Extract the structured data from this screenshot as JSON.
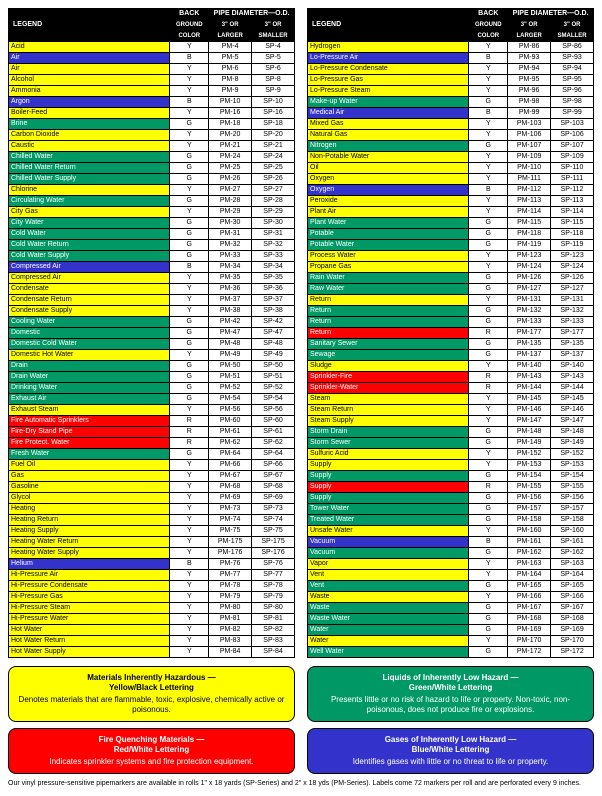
{
  "headers": {
    "legend": "LEGEND",
    "bgcolor_line1": "BACK",
    "bgcolor_line2": "GROUND",
    "bgcolor_line3": "COLOR",
    "pipe_top": "PIPE DIAMETER—O.D.",
    "larger_line1": "3\" OR",
    "larger_line2": "LARGER",
    "smaller_line1": "3\" OR",
    "smaller_line2": "SMALLER"
  },
  "colors": {
    "Y": "#ffff00",
    "G": "#009966",
    "B": "#3333cc",
    "R": "#ff0000",
    "black": "#000000",
    "white": "#ffffff"
  },
  "left_rows": [
    {
      "l": "Acid",
      "bg": "Y",
      "pm": "PM-4",
      "sp": "SP-4"
    },
    {
      "l": "Air",
      "bg": "B",
      "pm": "PM-5",
      "sp": "SP-5"
    },
    {
      "l": "Air",
      "bg": "Y",
      "pm": "PM-6",
      "sp": "SP-6"
    },
    {
      "l": "Alcohol",
      "bg": "Y",
      "pm": "PM-8",
      "sp": "SP-8"
    },
    {
      "l": "Ammonia",
      "bg": "Y",
      "pm": "PM-9",
      "sp": "SP-9"
    },
    {
      "l": "Argon",
      "bg": "B",
      "pm": "PM-10",
      "sp": "SP-10"
    },
    {
      "l": "Boiler-Feed",
      "bg": "Y",
      "pm": "PM-16",
      "sp": "SP-16"
    },
    {
      "l": "Brine",
      "bg": "G",
      "pm": "PM-18",
      "sp": "SP-18"
    },
    {
      "l": "Carbon Dioxide",
      "bg": "Y",
      "pm": "PM-20",
      "sp": "SP-20"
    },
    {
      "l": "Caustic",
      "bg": "Y",
      "pm": "PM-21",
      "sp": "SP-21"
    },
    {
      "l": "Chilled Water",
      "bg": "G",
      "pm": "PM-24",
      "sp": "SP-24"
    },
    {
      "l": "Chilled Water Return",
      "bg": "G",
      "pm": "PM-25",
      "sp": "SP-25"
    },
    {
      "l": "Chilled Water Supply",
      "bg": "G",
      "pm": "PM-26",
      "sp": "SP-26"
    },
    {
      "l": "Chlorine",
      "bg": "Y",
      "pm": "PM-27",
      "sp": "SP-27"
    },
    {
      "l": "Circulating Water",
      "bg": "G",
      "pm": "PM-28",
      "sp": "SP-28"
    },
    {
      "l": "City Gas",
      "bg": "Y",
      "pm": "PM-29",
      "sp": "SP-29"
    },
    {
      "l": "City Water",
      "bg": "G",
      "pm": "PM-30",
      "sp": "SP-30"
    },
    {
      "l": "Cold Water",
      "bg": "G",
      "pm": "PM-31",
      "sp": "SP-31"
    },
    {
      "l": "Cold Water Return",
      "bg": "G",
      "pm": "PM-32",
      "sp": "SP-32"
    },
    {
      "l": "Cold Water Supply",
      "bg": "G",
      "pm": "PM-33",
      "sp": "SP-33"
    },
    {
      "l": "Compressed Air",
      "bg": "B",
      "pm": "PM-34",
      "sp": "SP-34"
    },
    {
      "l": "Compressed Air",
      "bg": "Y",
      "pm": "PM-35",
      "sp": "SP-35"
    },
    {
      "l": "Condensate",
      "bg": "Y",
      "pm": "PM-36",
      "sp": "SP-36"
    },
    {
      "l": "Condensate Return",
      "bg": "Y",
      "pm": "PM-37",
      "sp": "SP-37"
    },
    {
      "l": "Condensate Supply",
      "bg": "Y",
      "pm": "PM-38",
      "sp": "SP-38"
    },
    {
      "l": "Cooling Water",
      "bg": "G",
      "pm": "PM-42",
      "sp": "SP-42"
    },
    {
      "l": "Domestic",
      "bg": "G",
      "pm": "PM-47",
      "sp": "SP-47"
    },
    {
      "l": "Domestic Cold Water",
      "bg": "G",
      "pm": "PM-48",
      "sp": "SP-48"
    },
    {
      "l": "Domestic Hot Water",
      "bg": "Y",
      "pm": "PM-49",
      "sp": "SP-49"
    },
    {
      "l": "Drain",
      "bg": "G",
      "pm": "PM-50",
      "sp": "SP-50"
    },
    {
      "l": "Drain Water",
      "bg": "G",
      "pm": "PM-51",
      "sp": "SP-51"
    },
    {
      "l": "Drinking Water",
      "bg": "G",
      "pm": "PM-52",
      "sp": "SP-52"
    },
    {
      "l": "Exhaust Air",
      "bg": "G",
      "pm": "PM-54",
      "sp": "SP-54"
    },
    {
      "l": "Exhaust Steam",
      "bg": "Y",
      "pm": "PM-56",
      "sp": "SP-56"
    },
    {
      "l": "Fire Automatic Sprinklers",
      "bg": "R",
      "pm": "PM-60",
      "sp": "SP-60"
    },
    {
      "l": "Fire-Dry Stand Pipe",
      "bg": "R",
      "pm": "PM-61",
      "sp": "SP-61"
    },
    {
      "l": "Fire Protect. Water",
      "bg": "R",
      "pm": "PM-62",
      "sp": "SP-62"
    },
    {
      "l": "Fresh Water",
      "bg": "G",
      "pm": "PM-64",
      "sp": "SP-64"
    },
    {
      "l": "Fuel Oil",
      "bg": "Y",
      "pm": "PM-66",
      "sp": "SP-66"
    },
    {
      "l": "Gas",
      "bg": "Y",
      "pm": "PM-67",
      "sp": "SP-67"
    },
    {
      "l": "Gasoline",
      "bg": "Y",
      "pm": "PM-68",
      "sp": "SP-68"
    },
    {
      "l": "Glycol",
      "bg": "Y",
      "pm": "PM-69",
      "sp": "SP-69"
    },
    {
      "l": "Heating",
      "bg": "Y",
      "pm": "PM-73",
      "sp": "SP-73"
    },
    {
      "l": "Heating Return",
      "bg": "Y",
      "pm": "PM-74",
      "sp": "SP-74"
    },
    {
      "l": "Heating Supply",
      "bg": "Y",
      "pm": "PM-75",
      "sp": "SP-75"
    },
    {
      "l": "Heating Water Return",
      "bg": "Y",
      "pm": "PM-175",
      "sp": "SP-175"
    },
    {
      "l": "Heating Water Supply",
      "bg": "Y",
      "pm": "PM-176",
      "sp": "SP-176"
    },
    {
      "l": "Helium",
      "bg": "B",
      "pm": "PM-76",
      "sp": "SP-76"
    },
    {
      "l": "Hi-Pressure Air",
      "bg": "Y",
      "pm": "PM-77",
      "sp": "SP-77"
    },
    {
      "l": "Hi-Pressure Condensate",
      "bg": "Y",
      "pm": "PM-78",
      "sp": "SP-78"
    },
    {
      "l": "Hi-Pressure Gas",
      "bg": "Y",
      "pm": "PM-79",
      "sp": "SP-79"
    },
    {
      "l": "Hi-Pressure Steam",
      "bg": "Y",
      "pm": "PM-80",
      "sp": "SP-80"
    },
    {
      "l": "Hi-Pressure Water",
      "bg": "Y",
      "pm": "PM-81",
      "sp": "SP-81"
    },
    {
      "l": "Hot Water",
      "bg": "Y",
      "pm": "PM-82",
      "sp": "SP-82"
    },
    {
      "l": "Hot Water Return",
      "bg": "Y",
      "pm": "PM-83",
      "sp": "SP-83"
    },
    {
      "l": "Hot Water Supply",
      "bg": "Y",
      "pm": "PM-84",
      "sp": "SP-84"
    }
  ],
  "right_rows": [
    {
      "l": "Hydrogen",
      "bg": "Y",
      "pm": "PM-86",
      "sp": "SP-86"
    },
    {
      "l": "Lo-Pressure Air",
      "bg": "B",
      "pm": "PM-93",
      "sp": "SP-93"
    },
    {
      "l": "Lo-Pressure Condensate",
      "bg": "Y",
      "pm": "PM-94",
      "sp": "SP-94"
    },
    {
      "l": "Lo-Pressure Gas",
      "bg": "Y",
      "pm": "PM-95",
      "sp": "SP-95"
    },
    {
      "l": "Lo-Pressure Steam",
      "bg": "Y",
      "pm": "PM-96",
      "sp": "SP-96"
    },
    {
      "l": "Make-up Water",
      "bg": "G",
      "pm": "PM-98",
      "sp": "SP-98"
    },
    {
      "l": "Medical Air",
      "bg": "B",
      "pm": "PM-99",
      "sp": "SP-99"
    },
    {
      "l": "Mixed Gas",
      "bg": "Y",
      "pm": "PM-103",
      "sp": "SP-103"
    },
    {
      "l": "Natural Gas",
      "bg": "Y",
      "pm": "PM-106",
      "sp": "SP-106"
    },
    {
      "l": "Nitrogen",
      "bg": "G",
      "pm": "PM-107",
      "sp": "SP-107"
    },
    {
      "l": "Non-Potable Water",
      "bg": "Y",
      "pm": "PM-109",
      "sp": "SP-109"
    },
    {
      "l": "Oil",
      "bg": "Y",
      "pm": "PM-110",
      "sp": "SP-110"
    },
    {
      "l": "Oxygen",
      "bg": "Y",
      "pm": "PM-111",
      "sp": "SP-111"
    },
    {
      "l": "Oxygen",
      "bg": "B",
      "pm": "PM-112",
      "sp": "SP-112"
    },
    {
      "l": "Peroxide",
      "bg": "Y",
      "pm": "PM-113",
      "sp": "SP-113"
    },
    {
      "l": "Plant Air",
      "bg": "Y",
      "pm": "PM-114",
      "sp": "SP-114"
    },
    {
      "l": "Plant Water",
      "bg": "G",
      "pm": "PM-115",
      "sp": "SP-115"
    },
    {
      "l": "Potable",
      "bg": "G",
      "pm": "PM-118",
      "sp": "SP-118"
    },
    {
      "l": "Potable Water",
      "bg": "G",
      "pm": "PM-119",
      "sp": "SP-119"
    },
    {
      "l": "Process Water",
      "bg": "Y",
      "pm": "PM-123",
      "sp": "SP-123"
    },
    {
      "l": "Propane Gas",
      "bg": "Y",
      "pm": "PM-124",
      "sp": "SP-124"
    },
    {
      "l": "Rain Water",
      "bg": "G",
      "pm": "PM-126",
      "sp": "SP-126"
    },
    {
      "l": "Raw Water",
      "bg": "G",
      "pm": "PM-127",
      "sp": "SP-127"
    },
    {
      "l": "Return",
      "bg": "Y",
      "pm": "PM-131",
      "sp": "SP-131"
    },
    {
      "l": "Return",
      "bg": "G",
      "pm": "PM-132",
      "sp": "SP-132"
    },
    {
      "l": "Return",
      "bg": "G",
      "pm": "PM-133",
      "sp": "SP-133"
    },
    {
      "l": "Return",
      "bg": "R",
      "pm": "PM-177",
      "sp": "SP-177"
    },
    {
      "l": "Sanitary Sewer",
      "bg": "G",
      "pm": "PM-135",
      "sp": "SP-135"
    },
    {
      "l": "Sewage",
      "bg": "G",
      "pm": "PM-137",
      "sp": "SP-137"
    },
    {
      "l": "Sludge",
      "bg": "Y",
      "pm": "PM-140",
      "sp": "SP-140"
    },
    {
      "l": "Sprinkler-Fire",
      "bg": "R",
      "pm": "PM-143",
      "sp": "SP-143"
    },
    {
      "l": "Sprinkler-Water",
      "bg": "R",
      "pm": "PM-144",
      "sp": "SP-144"
    },
    {
      "l": "Steam",
      "bg": "Y",
      "pm": "PM-145",
      "sp": "SP-145"
    },
    {
      "l": "Steam Return",
      "bg": "Y",
      "pm": "PM-146",
      "sp": "SP-146"
    },
    {
      "l": "Steam Supply",
      "bg": "Y",
      "pm": "PM-147",
      "sp": "SP-147"
    },
    {
      "l": "Storm Drain",
      "bg": "G",
      "pm": "PM-148",
      "sp": "SP-148"
    },
    {
      "l": "Storm Sewer",
      "bg": "G",
      "pm": "PM-149",
      "sp": "SP-149"
    },
    {
      "l": "Sulfuric Acid",
      "bg": "Y",
      "pm": "PM-152",
      "sp": "SP-152"
    },
    {
      "l": "Supply",
      "bg": "Y",
      "pm": "PM-153",
      "sp": "SP-153"
    },
    {
      "l": "Supply",
      "bg": "G",
      "pm": "PM-154",
      "sp": "SP-154"
    },
    {
      "l": "Supply",
      "bg": "R",
      "pm": "PM-155",
      "sp": "SP-155"
    },
    {
      "l": "Supply",
      "bg": "G",
      "pm": "PM-156",
      "sp": "SP-156"
    },
    {
      "l": "Tower Water",
      "bg": "G",
      "pm": "PM-157",
      "sp": "SP-157"
    },
    {
      "l": "Treated Water",
      "bg": "G",
      "pm": "PM-158",
      "sp": "SP-158"
    },
    {
      "l": "Unsafe Water",
      "bg": "Y",
      "pm": "PM-160",
      "sp": "SP-160"
    },
    {
      "l": "Vacuum",
      "bg": "B",
      "pm": "PM-161",
      "sp": "SP-161"
    },
    {
      "l": "Vacuum",
      "bg": "G",
      "pm": "PM-162",
      "sp": "SP-162"
    },
    {
      "l": "Vapor",
      "bg": "Y",
      "pm": "PM-163",
      "sp": "SP-163"
    },
    {
      "l": "Vent",
      "bg": "Y",
      "pm": "PM-164",
      "sp": "SP-164"
    },
    {
      "l": "Vent",
      "bg": "G",
      "pm": "PM-165",
      "sp": "SP-165"
    },
    {
      "l": "Waste",
      "bg": "Y",
      "pm": "PM-166",
      "sp": "SP-166"
    },
    {
      "l": "Waste",
      "bg": "G",
      "pm": "PM-167",
      "sp": "SP-167"
    },
    {
      "l": "Waste Water",
      "bg": "G",
      "pm": "PM-168",
      "sp": "SP-168"
    },
    {
      "l": "Water",
      "bg": "G",
      "pm": "PM-169",
      "sp": "SP-169"
    },
    {
      "l": "Water",
      "bg": "Y",
      "pm": "PM-170",
      "sp": "SP-170"
    },
    {
      "l": "Well Water",
      "bg": "G",
      "pm": "PM-172",
      "sp": "SP-172"
    }
  ],
  "boxes": {
    "yellow": {
      "title": "Materials Inherently Hazardous —",
      "sub": "Yellow/Black Lettering",
      "body": "Denotes materials that are flammable, toxic, explosive, chemically active or poisonous."
    },
    "green": {
      "title": "Liquids of Inherently Low Hazard —",
      "sub": "Green/White Lettering",
      "body": "Presents little or no risk of hazard to life or property. Non-toxic, non-poisonous, does not produce fire or explosions."
    },
    "red": {
      "title": "Fire Quenching Materials —",
      "sub": "Red/White Lettering",
      "body": "Indicates sprinkler systems and fire protection equipment."
    },
    "blue": {
      "title": "Gases of Inherently Low Hazard —",
      "sub": "Blue/White Lettering",
      "body": "Identifies gases with little or no threat to life or property."
    }
  },
  "footnote": "Our vinyl pressure-sensitive pipemarkers are available in rolls 1\" x 18 yards (SP-Series) and 2\" x 18 yds (PM-Series). Labels come 72 markers per roll and are perforated every 9 inches."
}
